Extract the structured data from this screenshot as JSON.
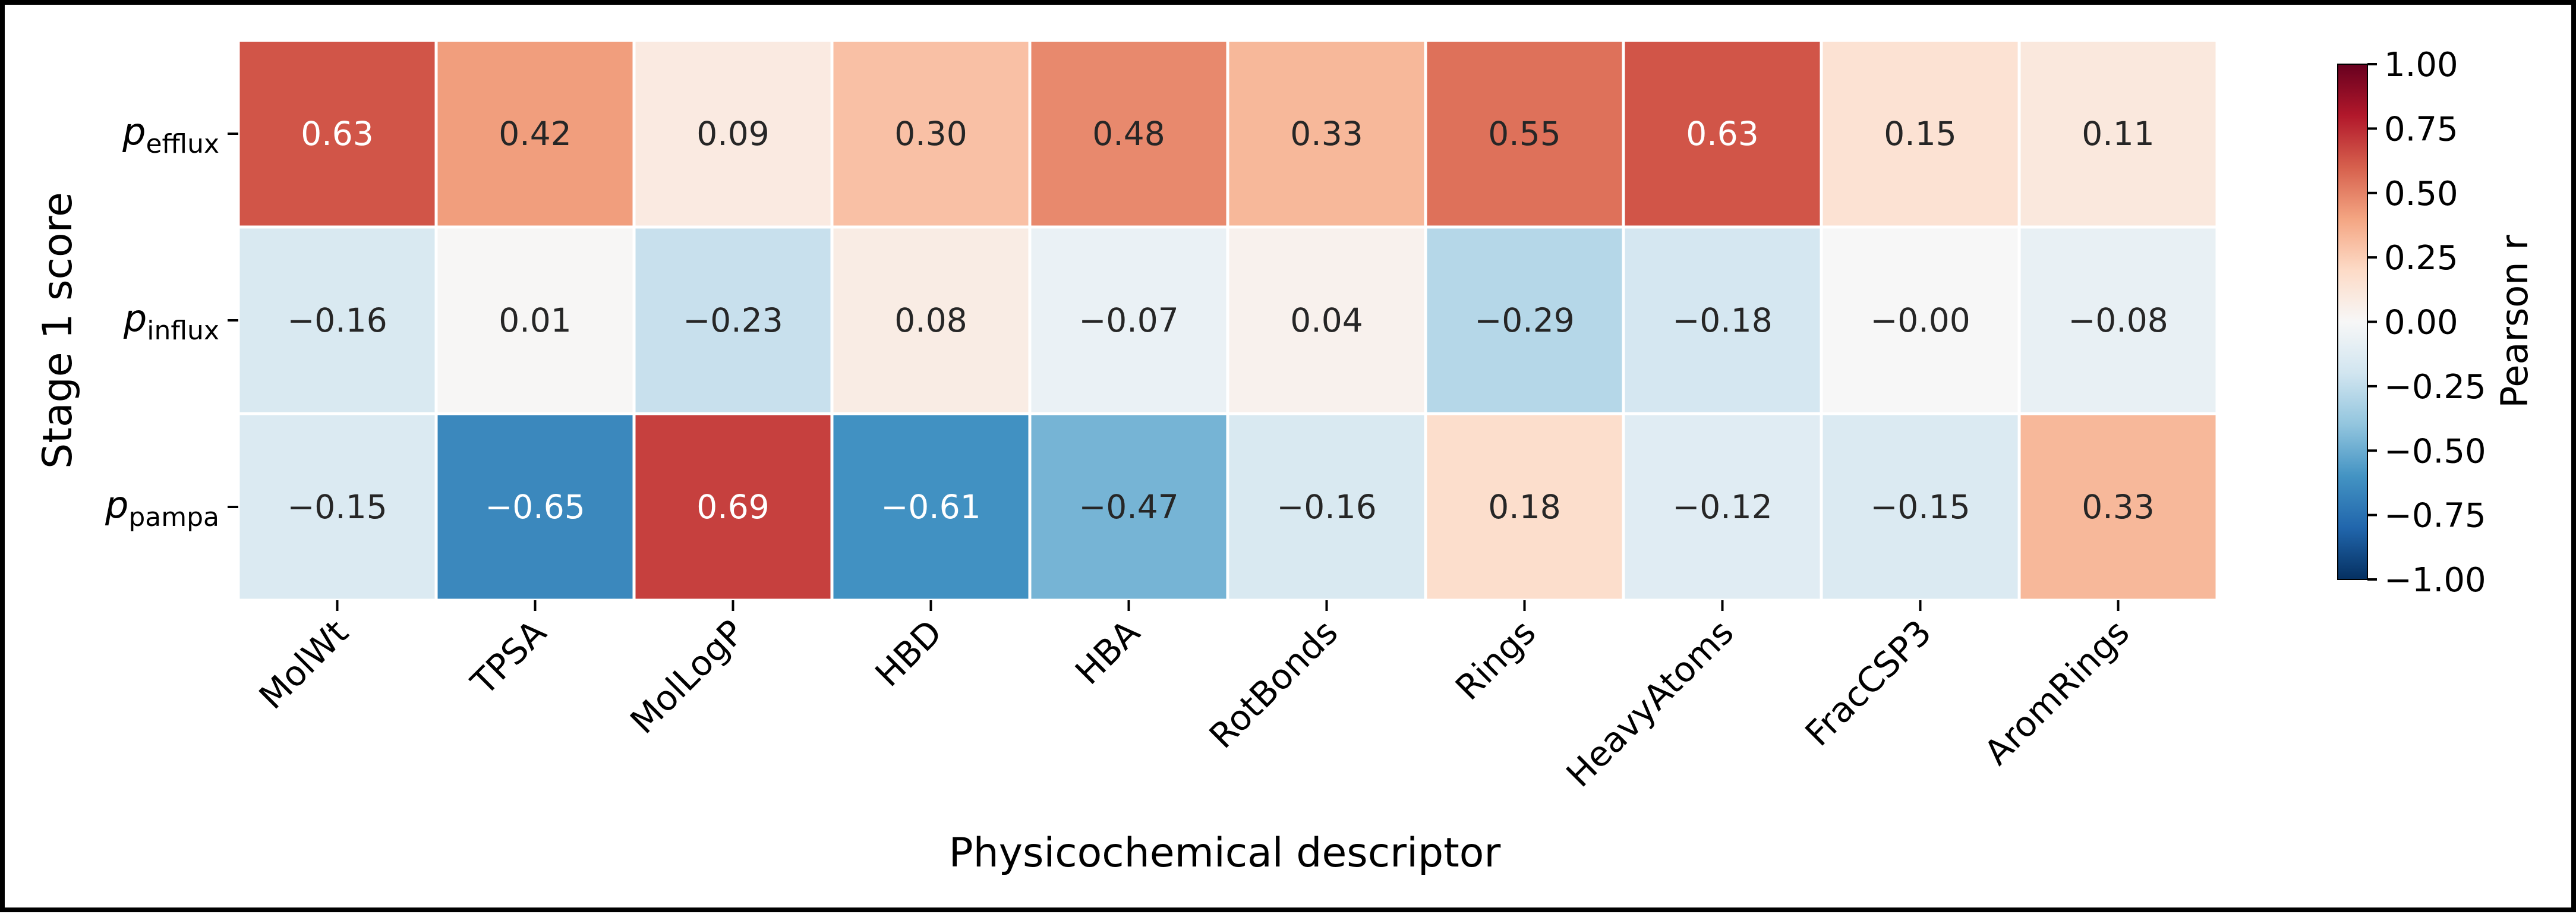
{
  "chart_data": {
    "type": "heatmap",
    "rows": [
      {
        "base": "p",
        "sub": "efflux"
      },
      {
        "base": "p",
        "sub": "influx"
      },
      {
        "base": "p",
        "sub": "pampa"
      }
    ],
    "columns": [
      "MolWt",
      "TPSA",
      "MolLogP",
      "HBD",
      "HBA",
      "RotBonds",
      "Rings",
      "HeavyAtoms",
      "FracCSP3",
      "AromRings"
    ],
    "values": [
      [
        0.63,
        0.42,
        0.09,
        0.3,
        0.48,
        0.33,
        0.55,
        0.63,
        0.15,
        0.11
      ],
      [
        -0.16,
        0.01,
        -0.23,
        0.08,
        -0.07,
        0.04,
        -0.29,
        -0.18,
        -0.0,
        -0.08
      ],
      [
        -0.15,
        -0.65,
        0.69,
        -0.61,
        -0.47,
        -0.16,
        0.18,
        -0.12,
        -0.15,
        0.33
      ]
    ],
    "cell_labels": [
      [
        "0.63",
        "0.42",
        "0.09",
        "0.30",
        "0.48",
        "0.33",
        "0.55",
        "0.63",
        "0.15",
        "0.11"
      ],
      [
        "−0.16",
        "0.01",
        "−0.23",
        "0.08",
        "−0.07",
        "0.04",
        "−0.29",
        "−0.18",
        "−0.00",
        "−0.08"
      ],
      [
        "−0.15",
        "−0.65",
        "0.69",
        "−0.61",
        "−0.47",
        "−0.16",
        "0.18",
        "−0.12",
        "−0.15",
        "0.33"
      ]
    ],
    "xlabel": "Physicochemical descriptor",
    "ylabel": "Stage 1 score",
    "colorbar": {
      "label": "Pearson r",
      "range": [
        -1.0,
        1.0
      ],
      "ticks": [
        1.0,
        0.75,
        0.5,
        0.25,
        0.0,
        -0.25,
        -0.5,
        -0.75,
        -1.0
      ],
      "tick_labels": [
        "1.00",
        "0.75",
        "0.50",
        "0.25",
        "0.00",
        "−0.25",
        "−0.50",
        "−0.75",
        "−1.00"
      ],
      "colormap": "RdBu_r",
      "colors": [
        "#053061",
        "#2166ac",
        "#4393c3",
        "#92c5de",
        "#d1e5f0",
        "#f7f7f7",
        "#fddbc7",
        "#f4a582",
        "#d6604d",
        "#b2182b",
        "#67001f"
      ]
    },
    "grid": false,
    "legend": "none"
  }
}
